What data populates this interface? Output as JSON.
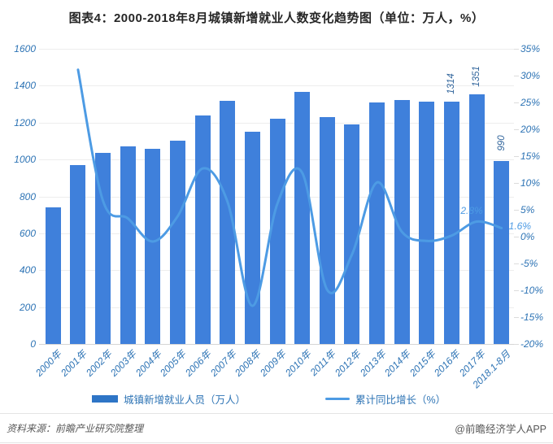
{
  "title": "图表4：2000-2018年8月城镇新增就业人数变化趋势图（单位：万人，%）",
  "colors": {
    "bar": "#3f80db",
    "line": "#4d9be4",
    "axis_label": "#2e74b5",
    "value_label": "#31659c",
    "line_label": "#4d9be4",
    "grid": "#ededed",
    "title": "#262626",
    "footer": "#595959"
  },
  "chart_data": {
    "type": "bar",
    "subtype": "bar-line-combo",
    "categories": [
      "2000年",
      "2001年",
      "2002年",
      "2003年",
      "2004年",
      "2005年",
      "2006年",
      "2007年",
      "2008年",
      "2009年",
      "2010年",
      "2011年",
      "2012年",
      "2013年",
      "2014年",
      "2015年",
      "2016年",
      "2017年",
      "2018.1-8月"
    ],
    "series": [
      {
        "name": "城镇新增就业人员（万人）",
        "type": "bar",
        "axis": "left",
        "values": [
          740,
          970,
          1035,
          1070,
          1060,
          1100,
          1240,
          1320,
          1150,
          1220,
          1365,
          1230,
          1190,
          1310,
          1322,
          1312,
          1314,
          1351,
          990
        ]
      },
      {
        "name": "累计同比增长（%）",
        "type": "line",
        "axis": "right",
        "values": [
          null,
          31.1,
          6.7,
          3.4,
          -0.9,
          3.8,
          12.7,
          6.5,
          -12.9,
          6.1,
          11.9,
          -9.9,
          -3.3,
          10.1,
          0.9,
          -0.8,
          0.2,
          2.8,
          1.6
        ]
      }
    ],
    "left_axis": {
      "min": 0,
      "max": 1600,
      "step": 200,
      "suffix": ""
    },
    "right_axis": {
      "min": -20,
      "max": 35,
      "step": 5,
      "suffix": "%"
    },
    "grid": "horizontal",
    "legend_position": "bottom",
    "bar_labels": [
      {
        "index": 16,
        "text": "1314"
      },
      {
        "index": 17,
        "text": "1351"
      },
      {
        "index": 18,
        "text": "990"
      }
    ],
    "line_labels": [
      {
        "index": 17,
        "text": "2.8%",
        "placement": "above"
      },
      {
        "index": 18,
        "text": "1.6%",
        "placement": "right"
      }
    ],
    "legend": [
      {
        "label": "城镇新增就业人员（万人）",
        "type": "bar"
      },
      {
        "label": "累计同比增长（%）",
        "type": "line"
      }
    ]
  },
  "footer": {
    "source": "资料来源：前瞻产业研究院整理",
    "credit": "@前瞻经济学人APP"
  }
}
